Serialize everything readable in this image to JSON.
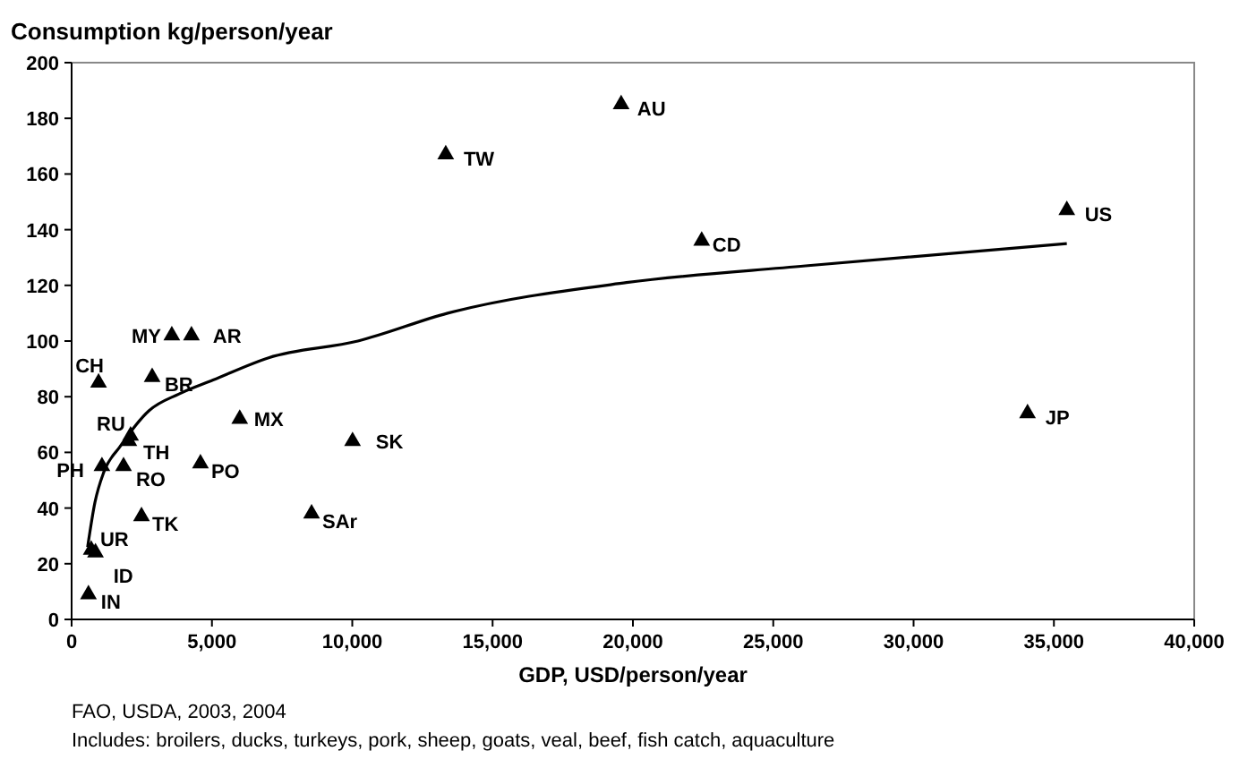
{
  "chart_data": {
    "type": "scatter",
    "title": "Consumption kg/person/year",
    "xlabel": "GDP, USD/person/year",
    "xlim": [
      0,
      40000
    ],
    "xticks": [
      {
        "value": 0,
        "label": "0"
      },
      {
        "value": 5000,
        "label": "5,000"
      },
      {
        "value": 10000,
        "label": "10,000"
      },
      {
        "value": 15000,
        "label": "15,000"
      },
      {
        "value": 20000,
        "label": "20,000"
      },
      {
        "value": 25000,
        "label": "25,000"
      },
      {
        "value": 30000,
        "label": "30,000"
      },
      {
        "value": 35000,
        "label": "35,000"
      },
      {
        "value": 40000,
        "label": "40,000"
      }
    ],
    "ylim": [
      0,
      200
    ],
    "yticks": [
      0,
      20,
      40,
      60,
      80,
      100,
      120,
      140,
      160,
      180,
      200
    ],
    "grid": false,
    "series": [
      {
        "color": "#000000",
        "marker": "triangle",
        "x": [
          600,
          700,
          850,
          960,
          1080,
          1850,
          2100,
          2040,
          2870,
          3570,
          4270,
          2490,
          4590,
          5990,
          8550,
          10010,
          13330,
          19580,
          22450,
          35460,
          34060
        ],
        "values": [
          9,
          25,
          24,
          85,
          55,
          55,
          66,
          64,
          87,
          102,
          102,
          37,
          56,
          72,
          38,
          64,
          167,
          185,
          136,
          147,
          74
        ]
      },
      {
        "type": "line",
        "color": "#000000",
        "marker": "none",
        "line_style": "solid",
        "x": [
          570,
          830,
          1150,
          1720,
          2760,
          3830,
          5040,
          7020,
          10200,
          13400,
          19770,
          26150,
          35460
        ],
        "values": [
          26,
          42,
          53,
          62,
          75,
          81,
          86,
          94,
          100,
          110,
          121,
          127,
          135
        ]
      }
    ],
    "annotations": [
      {
        "text": "IN",
        "x": 600,
        "y": 9
      },
      {
        "text": "UR",
        "x": 700,
        "y": 25
      },
      {
        "text": "ID",
        "x": 850,
        "y": 24
      },
      {
        "text": "CH",
        "x": 960,
        "y": 85
      },
      {
        "text": "PH",
        "x": 1080,
        "y": 55
      },
      {
        "text": "RO",
        "x": 1850,
        "y": 55
      },
      {
        "text": "RU",
        "x": 2100,
        "y": 66
      },
      {
        "text": "TH",
        "x": 2040,
        "y": 64
      },
      {
        "text": "BR",
        "x": 2870,
        "y": 87
      },
      {
        "text": "MY",
        "x": 3570,
        "y": 102
      },
      {
        "text": "AR",
        "x": 4270,
        "y": 102
      },
      {
        "text": "TK",
        "x": 2490,
        "y": 37
      },
      {
        "text": "PO",
        "x": 4590,
        "y": 56
      },
      {
        "text": "MX",
        "x": 5990,
        "y": 72
      },
      {
        "text": "SAr",
        "x": 8550,
        "y": 38
      },
      {
        "text": "SK",
        "x": 10010,
        "y": 64
      },
      {
        "text": "TW",
        "x": 13330,
        "y": 167
      },
      {
        "text": "AU",
        "x": 19580,
        "y": 185
      },
      {
        "text": "CD",
        "x": 22450,
        "y": 136
      },
      {
        "text": "US",
        "x": 35460,
        "y": 147
      },
      {
        "text": "JP",
        "x": 34060,
        "y": 74
      },
      "FAO, USDA, 2003, 2004",
      "Includes: broilers, ducks, turkeys, pork, sheep, goats, veal, beef, fish catch, aquaculture"
    ]
  }
}
